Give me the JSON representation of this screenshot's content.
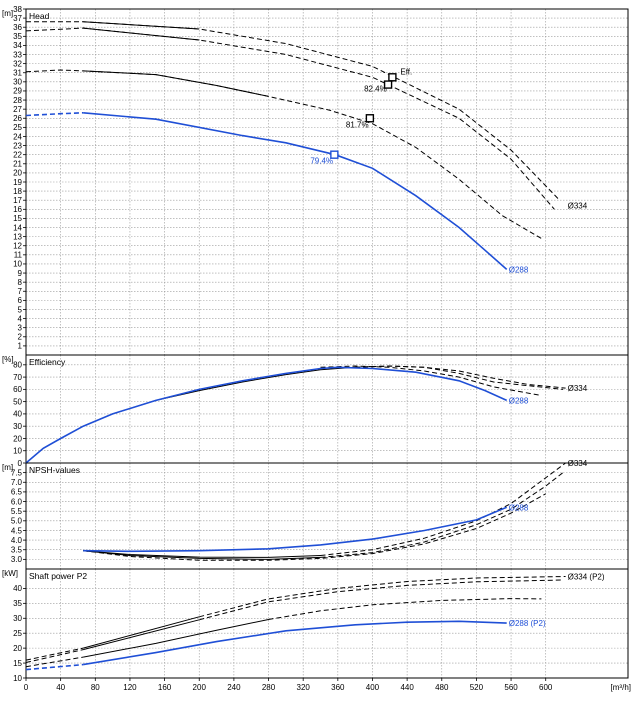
{
  "chart_data": [
    {
      "type": "line",
      "title": "Head",
      "unit": "[m]",
      "ylim": [
        0,
        38
      ],
      "yticks": [
        1,
        2,
        3,
        4,
        5,
        6,
        7,
        8,
        9,
        10,
        11,
        12,
        13,
        14,
        15,
        16,
        17,
        18,
        19,
        20,
        21,
        22,
        23,
        24,
        25,
        26,
        27,
        28,
        29,
        30,
        31,
        32,
        33,
        34,
        35,
        36,
        37,
        38
      ],
      "series": [
        {
          "color": "#000000",
          "dashed": false,
          "points": [
            [
              66,
              36.6
            ],
            [
              200,
              35.8
            ]
          ]
        },
        {
          "color": "#000000",
          "dashed": true,
          "points": [
            [
              0,
              36.6
            ],
            [
              66,
              36.6
            ],
            [
              200,
              35.8
            ],
            [
              300,
              34.2
            ],
            [
              400,
              31.7
            ],
            [
              500,
              27.0
            ],
            [
              560,
              22.5
            ],
            [
              616,
              17.0
            ]
          ]
        },
        {
          "color": "#000000",
          "dashed": false,
          "points": [
            [
              66,
              35.9
            ],
            [
              200,
              34.6
            ]
          ]
        },
        {
          "color": "#000000",
          "dashed": true,
          "points": [
            [
              0,
              35.6
            ],
            [
              66,
              35.9
            ],
            [
              200,
              34.6
            ],
            [
              300,
              33.0
            ],
            [
              400,
              30.5
            ],
            [
              500,
              26.0
            ],
            [
              560,
              21.5
            ],
            [
              610,
              16.0
            ]
          ]
        },
        {
          "color": "#000000",
          "dashed": false,
          "points": [
            [
              66,
              31.2
            ],
            [
              150,
              30.8
            ],
            [
              220,
              29.6
            ],
            [
              280,
              28.4
            ]
          ]
        },
        {
          "color": "#000000",
          "dashed": true,
          "points": [
            [
              0,
              31.1
            ],
            [
              40,
              31.3
            ],
            [
              66,
              31.2
            ],
            [
              150,
              30.8
            ],
            [
              220,
              29.6
            ],
            [
              280,
              28.4
            ],
            [
              350,
              26.9
            ],
            [
              400,
              25.4
            ],
            [
              450,
              22.8
            ],
            [
              500,
              19.3
            ],
            [
              550,
              15.3
            ],
            [
              595,
              12.8
            ]
          ]
        },
        {
          "color": "#1f4fd6",
          "dashed": false,
          "points": [
            [
              66,
              26.6
            ],
            [
              150,
              25.9
            ],
            [
              250,
              24.1
            ],
            [
              300,
              23.3
            ],
            [
              357,
              22.0
            ],
            [
              400,
              20.5
            ],
            [
              450,
              17.5
            ],
            [
              500,
              14.0
            ],
            [
              530,
              11.5
            ],
            [
              555,
              9.4
            ]
          ]
        },
        {
          "color": "#1f4fd6",
          "dashed": true,
          "points": [
            [
              0,
              26.3
            ],
            [
              40,
              26.5
            ],
            [
              66,
              26.6
            ]
          ]
        }
      ],
      "markers": [
        {
          "x": 423,
          "y": 30.5,
          "color": "#000000",
          "label": "Eff.",
          "dx": 8,
          "dy": -3
        },
        {
          "x": 418,
          "y": 29.7,
          "color": "#000000",
          "label": "82.4%",
          "dx": -24,
          "dy": 7
        },
        {
          "x": 397,
          "y": 26.0,
          "color": "#000000",
          "label": "81.7%",
          "dx": -24,
          "dy": 9
        },
        {
          "x": 356,
          "y": 22.0,
          "color": "#1f4fd6",
          "label": "79.4%",
          "dx": -24,
          "dy": 9
        }
      ],
      "curve_labels": [
        {
          "x": 623,
          "y": 16.4,
          "text": "Ø334",
          "color": "#000000"
        },
        {
          "x": 555,
          "y": 9.4,
          "text": "Ø288",
          "color": "#1f4fd6"
        }
      ]
    },
    {
      "type": "line",
      "title": "Efficiency",
      "unit": "[%]",
      "ylim": [
        0,
        88
      ],
      "yticks": [
        0,
        10,
        20,
        30,
        40,
        50,
        60,
        70,
        80
      ],
      "series": [
        {
          "color": "#000000",
          "dashed": false,
          "points": [
            [
              0,
              0
            ],
            [
              20,
              12
            ],
            [
              40,
              20
            ],
            [
              66,
              30
            ],
            [
              100,
              40
            ],
            [
              150,
              51
            ],
            [
              200,
              59
            ],
            [
              250,
              66
            ],
            [
              300,
              72
            ],
            [
              340,
              76
            ],
            [
              380,
              78
            ]
          ]
        },
        {
          "color": "#000000",
          "dashed": true,
          "points": [
            [
              380,
              78
            ],
            [
              420,
              79
            ],
            [
              460,
              78
            ],
            [
              500,
              75
            ],
            [
              540,
              69
            ],
            [
              580,
              64
            ],
            [
              623,
              61
            ]
          ]
        },
        {
          "color": "#000000",
          "dashed": true,
          "points": [
            [
              380,
              78
            ],
            [
              420,
              79
            ],
            [
              460,
              78
            ],
            [
              500,
              73
            ],
            [
              540,
              66
            ],
            [
              580,
              63
            ],
            [
              620,
              60
            ]
          ]
        },
        {
          "color": "#000000",
          "dashed": true,
          "points": [
            [
              340,
              78
            ],
            [
              380,
              79
            ],
            [
              420,
              78
            ],
            [
              460,
              75
            ],
            [
              500,
              70
            ],
            [
              540,
              62
            ],
            [
              595,
              55
            ]
          ]
        },
        {
          "color": "#1f4fd6",
          "dashed": false,
          "points": [
            [
              0,
              0
            ],
            [
              20,
              12
            ],
            [
              40,
              20
            ],
            [
              66,
              30
            ],
            [
              100,
              40
            ],
            [
              150,
              51
            ],
            [
              200,
              60
            ],
            [
              250,
              67
            ],
            [
              300,
              73
            ],
            [
              340,
              77
            ],
            [
              360,
              78
            ],
            [
              400,
              77
            ],
            [
              450,
              74
            ],
            [
              500,
              67
            ],
            [
              530,
              59
            ],
            [
              555,
              51
            ]
          ]
        }
      ],
      "curve_labels": [
        {
          "x": 623,
          "y": 61,
          "text": "Ø334",
          "color": "#000000"
        },
        {
          "x": 555,
          "y": 51,
          "text": "Ø288",
          "color": "#1f4fd6"
        }
      ]
    },
    {
      "type": "line",
      "title": "NPSH-values",
      "unit": "[m]",
      "ylim": [
        2.5,
        8.0
      ],
      "yticks": [
        3.0,
        3.5,
        4.0,
        4.5,
        5.0,
        5.5,
        6.0,
        6.5,
        7.0,
        7.5
      ],
      "series": [
        {
          "color": "#000000",
          "dashed": false,
          "points": [
            [
              66,
              3.45
            ],
            [
              120,
              3.25
            ],
            [
              200,
              3.12
            ],
            [
              280,
              3.1
            ],
            [
              340,
              3.2
            ]
          ]
        },
        {
          "color": "#000000",
          "dashed": true,
          "points": [
            [
              340,
              3.2
            ],
            [
              400,
              3.5
            ],
            [
              460,
              4.1
            ],
            [
              520,
              5.0
            ],
            [
              560,
              5.9
            ],
            [
              590,
              6.9
            ],
            [
              623,
              8.0
            ]
          ]
        },
        {
          "color": "#000000",
          "dashed": false,
          "points": [
            [
              66,
              3.45
            ],
            [
              120,
              3.2
            ],
            [
              200,
              3.05
            ],
            [
              280,
              3.0
            ],
            [
              340,
              3.1
            ]
          ]
        },
        {
          "color": "#000000",
          "dashed": true,
          "points": [
            [
              340,
              3.1
            ],
            [
              400,
              3.35
            ],
            [
              460,
              3.9
            ],
            [
              520,
              4.8
            ],
            [
              560,
              5.6
            ],
            [
              600,
              6.8
            ],
            [
              620,
              7.5
            ]
          ]
        },
        {
          "color": "#000000",
          "dashed": true,
          "points": [
            [
              66,
              3.45
            ],
            [
              120,
              3.15
            ],
            [
              200,
              2.95
            ],
            [
              280,
              2.95
            ],
            [
              340,
              3.05
            ],
            [
              400,
              3.3
            ],
            [
              460,
              3.8
            ],
            [
              520,
              4.6
            ],
            [
              560,
              5.4
            ],
            [
              600,
              6.4
            ]
          ]
        },
        {
          "color": "#1f4fd6",
          "dashed": false,
          "points": [
            [
              66,
              3.45
            ],
            [
              120,
              3.42
            ],
            [
              200,
              3.45
            ],
            [
              280,
              3.55
            ],
            [
              340,
              3.75
            ],
            [
              400,
              4.05
            ],
            [
              460,
              4.5
            ],
            [
              520,
              5.05
            ],
            [
              555,
              5.7
            ]
          ]
        }
      ],
      "curve_labels": [
        {
          "x": 623,
          "y": 8.0,
          "text": "Ø334",
          "color": "#000000"
        },
        {
          "x": 555,
          "y": 5.7,
          "text": "Ø288",
          "color": "#1f4fd6"
        }
      ]
    },
    {
      "type": "line",
      "title": "Shaft power P2",
      "unit": "[kW]",
      "ylim": [
        10,
        46.5
      ],
      "yticks": [
        10,
        15,
        20,
        25,
        30,
        35,
        40
      ],
      "series": [
        {
          "color": "#000000",
          "dashed": true,
          "points": [
            [
              0,
              16
            ],
            [
              66,
              20
            ]
          ]
        },
        {
          "color": "#000000",
          "dashed": false,
          "points": [
            [
              66,
              20
            ],
            [
              200,
              30.5
            ]
          ]
        },
        {
          "color": "#000000",
          "dashed": true,
          "points": [
            [
              200,
              30.5
            ],
            [
              280,
              36.5
            ],
            [
              360,
              40.0
            ],
            [
              440,
              42.3
            ],
            [
              520,
              43.5
            ],
            [
              623,
              44.0
            ]
          ]
        },
        {
          "color": "#000000",
          "dashed": true,
          "points": [
            [
              0,
              15.2
            ],
            [
              66,
              19.5
            ]
          ]
        },
        {
          "color": "#000000",
          "dashed": false,
          "points": [
            [
              66,
              19.5
            ],
            [
              200,
              29.5
            ]
          ]
        },
        {
          "color": "#000000",
          "dashed": true,
          "points": [
            [
              200,
              29.5
            ],
            [
              280,
              35.5
            ],
            [
              360,
              38.9
            ],
            [
              440,
              41.0
            ],
            [
              520,
              42.2
            ],
            [
              620,
              42.8
            ]
          ]
        },
        {
          "color": "#000000",
          "dashed": true,
          "points": [
            [
              0,
              13.8
            ],
            [
              66,
              17.0
            ]
          ]
        },
        {
          "color": "#000000",
          "dashed": false,
          "points": [
            [
              66,
              17.0
            ],
            [
              150,
              21.6
            ],
            [
              220,
              26.0
            ],
            [
              280,
              29.6
            ]
          ]
        },
        {
          "color": "#000000",
          "dashed": true,
          "points": [
            [
              280,
              29.6
            ],
            [
              340,
              32.5
            ],
            [
              400,
              34.5
            ],
            [
              480,
              36.0
            ],
            [
              560,
              36.6
            ],
            [
              595,
              36.5
            ]
          ]
        },
        {
          "color": "#1f4fd6",
          "dashed": true,
          "points": [
            [
              0,
              12.8
            ],
            [
              66,
              14.5
            ]
          ]
        },
        {
          "color": "#1f4fd6",
          "dashed": false,
          "points": [
            [
              66,
              14.5
            ],
            [
              150,
              18.5
            ],
            [
              220,
              22.2
            ],
            [
              300,
              25.8
            ],
            [
              380,
              27.8
            ],
            [
              440,
              28.7
            ],
            [
              500,
              29.0
            ],
            [
              555,
              28.4
            ]
          ]
        }
      ],
      "curve_labels": [
        {
          "x": 623,
          "y": 44.0,
          "text": "Ø334 (P2)",
          "color": "#000000"
        },
        {
          "x": 555,
          "y": 28.4,
          "text": "Ø288 (P2)",
          "color": "#1f4fd6"
        }
      ]
    }
  ],
  "x_axis": {
    "unit": "[m³/h]",
    "xlim": [
      0,
      695
    ],
    "ticks": [
      0,
      40,
      80,
      120,
      160,
      200,
      240,
      280,
      320,
      360,
      400,
      440,
      480,
      520,
      560,
      600
    ]
  }
}
